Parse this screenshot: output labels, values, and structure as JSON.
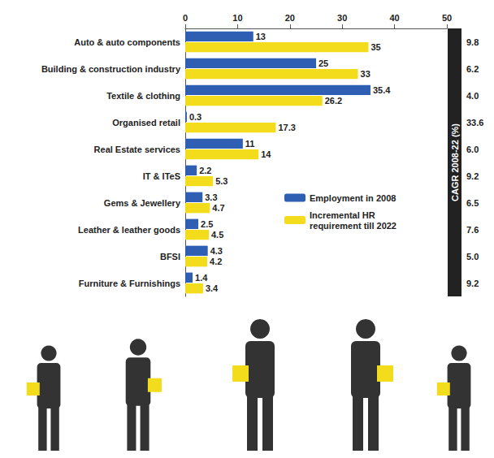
{
  "chart_data": {
    "type": "bar",
    "orientation": "horizontal",
    "categories": [
      "Auto & auto components",
      "Building & construction industry",
      "Textile & clothing",
      "Organised retail",
      "Real Estate services",
      "IT & ITeS",
      "Gems & Jewellery",
      "Leather & leather goods",
      "BFSI",
      "Furniture & Furnishings"
    ],
    "series": [
      {
        "name": "Employment in 2008",
        "color": "#2f5fb3",
        "values": [
          13,
          25,
          35.4,
          0.3,
          11,
          2.2,
          3.3,
          2.5,
          4.3,
          1.4
        ]
      },
      {
        "name": "Incremental HR requirement till 2022",
        "color": "#f2dc1c",
        "values": [
          35,
          33,
          26.2,
          17.3,
          14,
          5.3,
          4.7,
          4.5,
          4.2,
          3.4
        ]
      }
    ],
    "cagr": {
      "label": "CAGR 2008-22 (%)",
      "values": [
        9.8,
        6.2,
        4.0,
        33.6,
        6.0,
        9.2,
        6.5,
        7.6,
        5.0,
        9.2
      ],
      "value_labels": [
        "9.8",
        "6.2",
        "4.0",
        "33.6",
        "6.0",
        "9.2",
        "6.5",
        "7.6",
        "5.0",
        "9.2"
      ]
    },
    "xlim": [
      0,
      50
    ],
    "xticks": [
      0,
      10,
      20,
      30,
      40,
      50
    ],
    "grid": false,
    "legend": "right",
    "data_labels": true
  }
}
